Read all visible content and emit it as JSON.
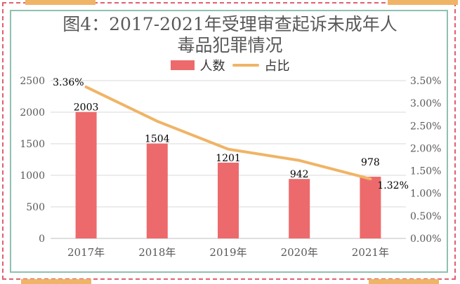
{
  "chart_data": {
    "type": "bar",
    "title_line1": "图4：2017-2021年受理审查起诉未成年人",
    "title_line2": "毒品犯罪情况",
    "categories": [
      "2017年",
      "2018年",
      "2019年",
      "2020年",
      "2021年"
    ],
    "series": [
      {
        "name": "人数",
        "type": "bar",
        "axis": "left",
        "color": "#ed6a6c",
        "values": [
          2003,
          1504,
          1201,
          942,
          978
        ],
        "labels": [
          "2003",
          "1504",
          "1201",
          "942",
          "978"
        ]
      },
      {
        "name": "占比",
        "type": "line",
        "axis": "right",
        "color": "#f0b466",
        "values": [
          3.36,
          2.6,
          1.98,
          1.73,
          1.32
        ],
        "labels": [
          "3.36%",
          "",
          "",
          "",
          "1.32%"
        ]
      }
    ],
    "y_left": {
      "range": [
        0,
        2500
      ],
      "ticks": [
        "0",
        "500",
        "1000",
        "1500",
        "2000",
        "2500"
      ]
    },
    "y_right": {
      "range": [
        0,
        3.5
      ],
      "ticks": [
        "0.00%",
        "0.50%",
        "1.00%",
        "1.50%",
        "2.00%",
        "2.50%",
        "3.00%",
        "3.50%"
      ]
    },
    "grid": true,
    "legend_position": "top"
  }
}
